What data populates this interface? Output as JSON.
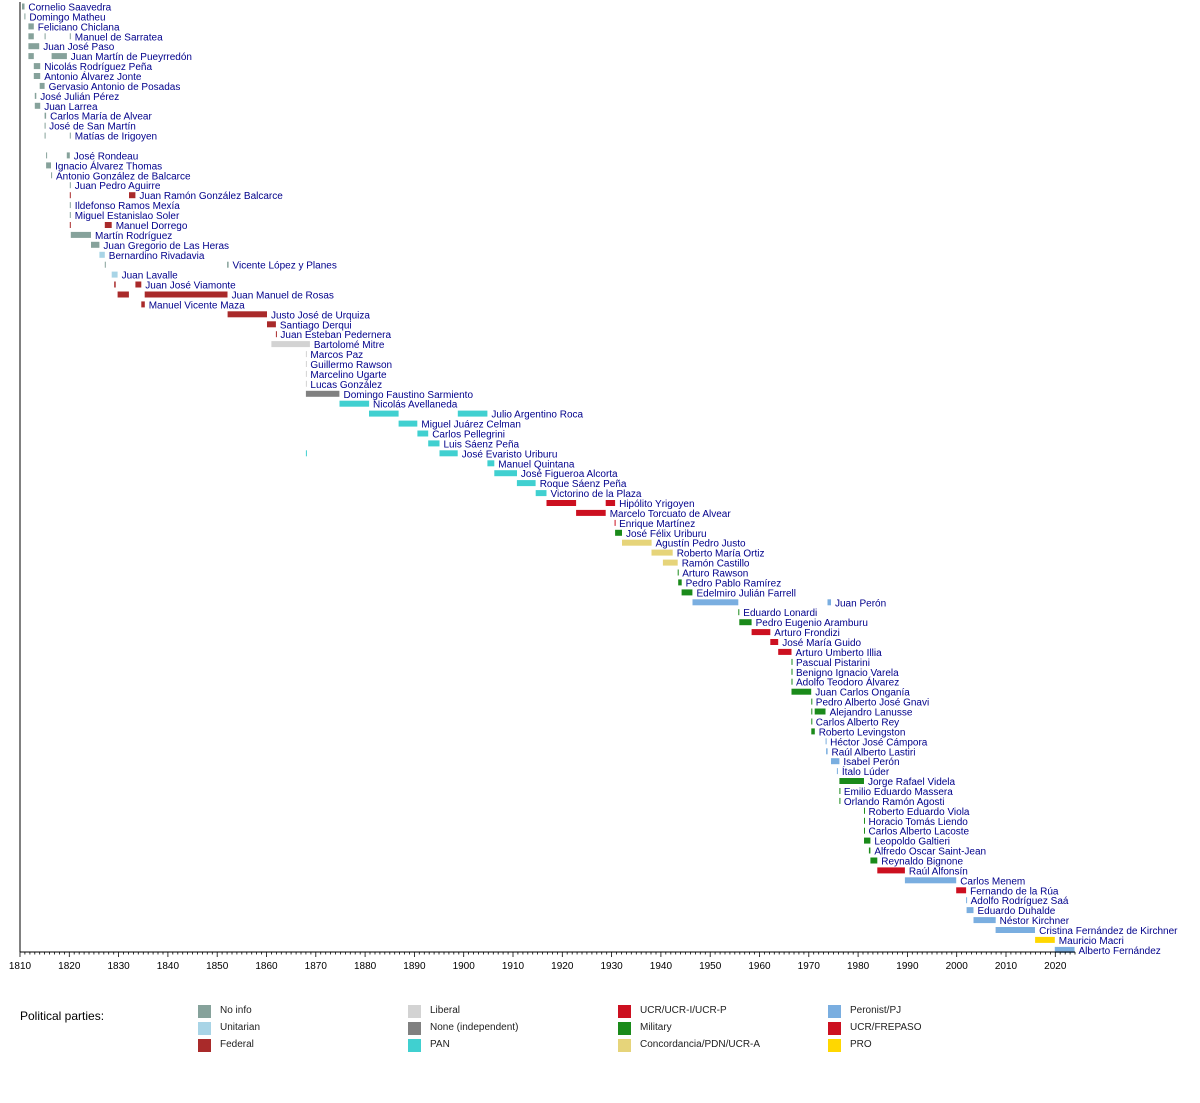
{
  "chart_data": {
    "type": "timeline",
    "title": "",
    "xlabel": "",
    "ylabel": "",
    "xlim": [
      1810,
      2024
    ],
    "x_ticks": [
      1810,
      1820,
      1830,
      1840,
      1850,
      1860,
      1870,
      1880,
      1890,
      1900,
      1910,
      1920,
      1930,
      1940,
      1950,
      1960,
      1970,
      1980,
      1990,
      2000,
      2010,
      2020
    ],
    "grid": false,
    "legend_position": "bottom",
    "legend_title": "Political parties:",
    "parties": [
      {
        "key": "noinfo",
        "name": "No info",
        "color": "#86a29b"
      },
      {
        "key": "unitarian",
        "name": "Unitarian",
        "color": "#a8d4e6"
      },
      {
        "key": "federal",
        "name": "Federal",
        "color": "#a92a2a"
      },
      {
        "key": "liberal",
        "name": "Liberal",
        "color": "#d3d3d3"
      },
      {
        "key": "independent",
        "name": "None (independent)",
        "color": "#808080"
      },
      {
        "key": "pan",
        "name": "PAN",
        "color": "#40d0d0"
      },
      {
        "key": "ucr",
        "name": "UCR/UCR-I/UCR-P",
        "color": "#cc1020"
      },
      {
        "key": "military",
        "name": "Military",
        "color": "#1a8a1a"
      },
      {
        "key": "concordancia",
        "name": "Concordancia/PDN/UCR-A",
        "color": "#e6d47a"
      },
      {
        "key": "peronist",
        "name": "Peronist/PJ",
        "color": "#7aaee0"
      },
      {
        "key": "frepaso",
        "name": "UCR/FREPASO",
        "color": "#cc1020"
      },
      {
        "key": "pro",
        "name": "PRO",
        "color": "#ffd700"
      }
    ],
    "rows": [
      {
        "name": "Cornelio Saavedra",
        "party": "noinfo",
        "terms": [
          [
            1810.4,
            1810.9
          ]
        ]
      },
      {
        "name": "Domingo Matheu",
        "party": "noinfo",
        "terms": [
          [
            1810.9,
            1811.1
          ]
        ]
      },
      {
        "name": "Feliciano Chiclana",
        "party": "noinfo",
        "terms": [
          [
            1811.7,
            1812.8
          ]
        ]
      },
      {
        "name": "Manuel de Sarratea",
        "party": "noinfo",
        "terms": [
          [
            1811.7,
            1812.8
          ],
          [
            1815.0,
            1815.1
          ],
          [
            1820.1,
            1820.3
          ]
        ]
      },
      {
        "name": "Juan José Paso",
        "party": "noinfo",
        "terms": [
          [
            1811.7,
            1813.9
          ]
        ]
      },
      {
        "name": "Juan Martín de Pueyrredón",
        "party": "noinfo",
        "terms": [
          [
            1811.7,
            1812.8
          ],
          [
            1816.4,
            1819.5
          ]
        ]
      },
      {
        "name": "Nicolás Rodríguez Peña",
        "party": "noinfo",
        "terms": [
          [
            1812.8,
            1814.1
          ]
        ]
      },
      {
        "name": "Antonio Álvarez Jonte",
        "party": "noinfo",
        "terms": [
          [
            1812.8,
            1814.1
          ]
        ]
      },
      {
        "name": "Gervasio Antonio de Posadas",
        "party": "noinfo",
        "terms": [
          [
            1814.0,
            1815.0
          ]
        ]
      },
      {
        "name": "José Julián Pérez",
        "party": "noinfo",
        "terms": [
          [
            1813.0,
            1813.3
          ]
        ]
      },
      {
        "name": "Juan Larrea",
        "party": "noinfo",
        "terms": [
          [
            1813.0,
            1814.1
          ]
        ]
      },
      {
        "name": "Carlos María de Alvear",
        "party": "noinfo",
        "terms": [
          [
            1815.0,
            1815.3
          ]
        ]
      },
      {
        "name": "José de San Martín",
        "party": "noinfo",
        "terms": [
          [
            1815.0,
            1815.1
          ]
        ]
      },
      {
        "name": "Matías de Irigoyen",
        "party": "noinfo",
        "terms": [
          [
            1815.0,
            1815.1
          ],
          [
            1820.1,
            1820.3
          ]
        ]
      },
      {
        "name": "",
        "party": "noinfo",
        "terms": []
      },
      {
        "name": "José Rondeau",
        "party": "noinfo",
        "terms": [
          [
            1815.3,
            1815.5
          ],
          [
            1819.5,
            1820.1
          ]
        ]
      },
      {
        "name": "Ignacio Álvarez Thomas",
        "party": "noinfo",
        "terms": [
          [
            1815.3,
            1816.3
          ]
        ]
      },
      {
        "name": "Antonio González de Balcarce",
        "party": "noinfo",
        "terms": [
          [
            1816.3,
            1816.5
          ]
        ]
      },
      {
        "name": "Juan Pedro Aguirre",
        "party": "noinfo",
        "terms": [
          [
            1820.1,
            1820.3
          ]
        ]
      },
      {
        "name": "Juan Ramón González Balcarce",
        "party": "federal",
        "terms": [
          [
            1820.1,
            1820.3
          ],
          [
            1832.1,
            1833.4
          ]
        ]
      },
      {
        "name": "Ildefonso Ramos Mexía",
        "party": "noinfo",
        "terms": [
          [
            1820.1,
            1820.3
          ]
        ]
      },
      {
        "name": "Miguel Estanislao Soler",
        "party": "noinfo",
        "terms": [
          [
            1820.1,
            1820.3
          ]
        ]
      },
      {
        "name": "Manuel Dorrego",
        "party": "federal",
        "terms": [
          [
            1820.1,
            1820.3
          ],
          [
            1827.2,
            1828.6
          ]
        ]
      },
      {
        "name": "Martín Rodríguez",
        "party": "noinfo",
        "terms": [
          [
            1820.3,
            1824.4
          ]
        ]
      },
      {
        "name": "Juan Gregorio de Las Heras",
        "party": "noinfo",
        "terms": [
          [
            1824.4,
            1826.1
          ]
        ]
      },
      {
        "name": "Bernardino Rivadavia",
        "party": "unitarian",
        "terms": [
          [
            1826.1,
            1827.2
          ]
        ]
      },
      {
        "name": "Vicente López y Planes",
        "party": "noinfo",
        "terms": [
          [
            1827.2,
            1827.4
          ],
          [
            1852.0,
            1852.3
          ]
        ]
      },
      {
        "name": "Juan Lavalle",
        "party": "unitarian",
        "terms": [
          [
            1828.6,
            1829.8
          ]
        ]
      },
      {
        "name": "Juan José Viamonte",
        "party": "federal",
        "terms": [
          [
            1829.1,
            1829.4
          ],
          [
            1833.4,
            1834.6
          ]
        ]
      },
      {
        "name": "Juan Manuel de Rosas",
        "party": "federal",
        "terms": [
          [
            1829.8,
            1832.1
          ],
          [
            1835.3,
            1852.1
          ]
        ]
      },
      {
        "name": "Manuel Vicente Maza",
        "party": "federal",
        "terms": [
          [
            1834.6,
            1835.3
          ]
        ]
      },
      {
        "name": "Justo José de Urquiza",
        "party": "federal",
        "terms": [
          [
            1852.1,
            1860.1
          ]
        ]
      },
      {
        "name": "Santiago Derqui",
        "party": "federal",
        "terms": [
          [
            1860.1,
            1861.9
          ]
        ]
      },
      {
        "name": "Juan Esteban Pedernera",
        "party": "federal",
        "terms": [
          [
            1861.9,
            1862.0
          ]
        ]
      },
      {
        "name": "Bartolomé Mitre",
        "party": "liberal",
        "terms": [
          [
            1861.0,
            1868.8
          ]
        ]
      },
      {
        "name": "Marcos Paz",
        "party": "liberal",
        "terms": [
          [
            1868.0,
            1868.1
          ]
        ]
      },
      {
        "name": "Guillermo Rawson",
        "party": "liberal",
        "terms": [
          [
            1868.0,
            1868.1
          ]
        ]
      },
      {
        "name": "Marcelino Ugarte",
        "party": "liberal",
        "terms": [
          [
            1868.0,
            1868.1
          ]
        ]
      },
      {
        "name": "Lucas González",
        "party": "liberal",
        "terms": [
          [
            1868.0,
            1868.1
          ]
        ]
      },
      {
        "name": "Domingo Faustino Sarmiento",
        "party": "independent",
        "terms": [
          [
            1868.0,
            1874.8
          ]
        ]
      },
      {
        "name": "Nicolás Avellaneda",
        "party": "pan",
        "terms": [
          [
            1874.8,
            1880.8
          ]
        ]
      },
      {
        "name": "Julio Argentino Roca",
        "party": "pan",
        "terms": [
          [
            1880.8,
            1886.8
          ],
          [
            1898.8,
            1904.8
          ]
        ]
      },
      {
        "name": "Miguel Juárez Celman",
        "party": "pan",
        "terms": [
          [
            1886.8,
            1890.6
          ]
        ]
      },
      {
        "name": "Carlos Pellegrini",
        "party": "pan",
        "terms": [
          [
            1890.6,
            1892.8
          ]
        ]
      },
      {
        "name": "Luis Sáenz Peña",
        "party": "pan",
        "terms": [
          [
            1892.8,
            1895.1
          ]
        ]
      },
      {
        "name": "José Evaristo Uriburu",
        "party": "pan",
        "terms": [
          [
            1868.0,
            1868.1
          ],
          [
            1895.1,
            1898.8
          ]
        ]
      },
      {
        "name": "Manuel Quintana",
        "party": "pan",
        "terms": [
          [
            1904.8,
            1906.2
          ]
        ]
      },
      {
        "name": "José Figueroa Alcorta",
        "party": "pan",
        "terms": [
          [
            1906.2,
            1910.8
          ]
        ]
      },
      {
        "name": "Roque Sáenz Peña",
        "party": "pan",
        "terms": [
          [
            1910.8,
            1914.6
          ]
        ]
      },
      {
        "name": "Victorino de la Plaza",
        "party": "pan",
        "terms": [
          [
            1914.6,
            1916.8
          ]
        ]
      },
      {
        "name": "Hipólito Yrigoyen",
        "party": "ucr",
        "terms": [
          [
            1916.8,
            1922.8
          ],
          [
            1928.8,
            1930.7
          ]
        ]
      },
      {
        "name": "Marcelo Torcuato de Alvear",
        "party": "ucr",
        "terms": [
          [
            1922.8,
            1928.8
          ]
        ]
      },
      {
        "name": "Enrique Martínez",
        "party": "ucr",
        "terms": [
          [
            1930.6,
            1930.7
          ]
        ]
      },
      {
        "name": "José Félix Uriburu",
        "party": "military",
        "terms": [
          [
            1930.7,
            1932.1
          ]
        ]
      },
      {
        "name": "Agustín Pedro Justo",
        "party": "concordancia",
        "terms": [
          [
            1932.1,
            1938.1
          ]
        ]
      },
      {
        "name": "Roberto María Ortiz",
        "party": "concordancia",
        "terms": [
          [
            1938.1,
            1942.4
          ]
        ]
      },
      {
        "name": "Ramón Castillo",
        "party": "concordancia",
        "terms": [
          [
            1940.4,
            1943.4
          ]
        ]
      },
      {
        "name": "Arturo Rawson",
        "party": "military",
        "terms": [
          [
            1943.4,
            1943.5
          ]
        ]
      },
      {
        "name": "Pedro Pablo Ramírez",
        "party": "military",
        "terms": [
          [
            1943.5,
            1944.2
          ]
        ]
      },
      {
        "name": "Edelmiro Julián Farrell",
        "party": "military",
        "terms": [
          [
            1944.2,
            1946.4
          ]
        ]
      },
      {
        "name": "Juan Perón",
        "party": "peronist",
        "terms": [
          [
            1946.4,
            1955.7
          ],
          [
            1973.8,
            1974.5
          ]
        ]
      },
      {
        "name": "Eduardo Lonardi",
        "party": "military",
        "terms": [
          [
            1955.7,
            1955.9
          ]
        ]
      },
      {
        "name": "Pedro Eugenio Aramburu",
        "party": "military",
        "terms": [
          [
            1955.9,
            1958.4
          ]
        ]
      },
      {
        "name": "Arturo Frondizi",
        "party": "ucr",
        "terms": [
          [
            1958.4,
            1962.2
          ]
        ]
      },
      {
        "name": "José María Guido",
        "party": "ucr",
        "terms": [
          [
            1962.2,
            1963.8
          ]
        ]
      },
      {
        "name": "Arturo Umberto Illia",
        "party": "ucr",
        "terms": [
          [
            1963.8,
            1966.5
          ]
        ]
      },
      {
        "name": "Pascual Pistarini",
        "party": "military",
        "terms": [
          [
            1966.5,
            1966.6
          ]
        ]
      },
      {
        "name": "Benigno Ignacio Varela",
        "party": "military",
        "terms": [
          [
            1966.5,
            1966.6
          ]
        ]
      },
      {
        "name": "Adolfo Teodoro Álvarez",
        "party": "military",
        "terms": [
          [
            1966.5,
            1966.6
          ]
        ]
      },
      {
        "name": "Juan Carlos Onganía",
        "party": "military",
        "terms": [
          [
            1966.5,
            1970.5
          ]
        ]
      },
      {
        "name": "Pedro Alberto José Gnavi",
        "party": "military",
        "terms": [
          [
            1970.5,
            1970.6
          ]
        ]
      },
      {
        "name": "Alejandro Lanusse",
        "party": "military",
        "terms": [
          [
            1970.5,
            1970.6
          ],
          [
            1971.2,
            1973.4
          ]
        ]
      },
      {
        "name": "Carlos Alberto Rey",
        "party": "military",
        "terms": [
          [
            1970.5,
            1970.6
          ]
        ]
      },
      {
        "name": "Roberto Levingston",
        "party": "military",
        "terms": [
          [
            1970.5,
            1971.2
          ]
        ]
      },
      {
        "name": "Héctor José Cámpora",
        "party": "peronist",
        "terms": [
          [
            1973.4,
            1973.5
          ]
        ]
      },
      {
        "name": "Raúl Alberto Lastiri",
        "party": "peronist",
        "terms": [
          [
            1973.5,
            1973.8
          ]
        ]
      },
      {
        "name": "Isabel Perón",
        "party": "peronist",
        "terms": [
          [
            1974.5,
            1976.2
          ]
        ]
      },
      {
        "name": "Ítalo Lúder",
        "party": "peronist",
        "terms": [
          [
            1975.7,
            1975.9
          ]
        ]
      },
      {
        "name": "Jorge Rafael Videla",
        "party": "military",
        "terms": [
          [
            1976.2,
            1981.2
          ]
        ]
      },
      {
        "name": "Emilio Eduardo Massera",
        "party": "military",
        "terms": [
          [
            1976.2,
            1976.3
          ]
        ]
      },
      {
        "name": "Orlando Ramón Agosti",
        "party": "military",
        "terms": [
          [
            1976.2,
            1976.3
          ]
        ]
      },
      {
        "name": "Roberto Eduardo Viola",
        "party": "military",
        "terms": [
          [
            1981.2,
            1981.3
          ]
        ]
      },
      {
        "name": "Horacio Tomás Liendo",
        "party": "military",
        "terms": [
          [
            1981.2,
            1981.3
          ]
        ]
      },
      {
        "name": "Carlos Alberto Lacoste",
        "party": "military",
        "terms": [
          [
            1981.2,
            1981.3
          ]
        ]
      },
      {
        "name": "Leopoldo Galtieri",
        "party": "military",
        "terms": [
          [
            1981.2,
            1982.5
          ]
        ]
      },
      {
        "name": "Alfredo Oscar Saint-Jean",
        "party": "military",
        "terms": [
          [
            1982.2,
            1982.5
          ]
        ]
      },
      {
        "name": "Reynaldo Bignone",
        "party": "military",
        "terms": [
          [
            1982.5,
            1983.9
          ]
        ]
      },
      {
        "name": "Raúl Alfonsín",
        "party": "ucr",
        "terms": [
          [
            1983.9,
            1989.5
          ]
        ]
      },
      {
        "name": "Carlos Menem",
        "party": "peronist",
        "terms": [
          [
            1989.5,
            1999.9
          ]
        ]
      },
      {
        "name": "Fernando de la Rúa",
        "party": "frepaso",
        "terms": [
          [
            1999.9,
            2001.9
          ]
        ]
      },
      {
        "name": "Adolfo Rodríguez Saá",
        "party": "peronist",
        "terms": [
          [
            2001.9,
            2002.0
          ]
        ]
      },
      {
        "name": "Eduardo Duhalde",
        "party": "peronist",
        "terms": [
          [
            2002.0,
            2003.4
          ]
        ]
      },
      {
        "name": "Néstor Kirchner",
        "party": "peronist",
        "terms": [
          [
            2003.4,
            2007.9
          ]
        ]
      },
      {
        "name": "Cristina Fernández de Kirchner",
        "party": "peronist",
        "terms": [
          [
            2007.9,
            2015.9
          ]
        ]
      },
      {
        "name": "Mauricio Macri",
        "party": "pro",
        "terms": [
          [
            2015.9,
            2019.9
          ]
        ]
      },
      {
        "name": "Alberto Fernández",
        "party": "peronist",
        "terms": [
          [
            2019.9,
            2023.9
          ]
        ]
      }
    ]
  }
}
